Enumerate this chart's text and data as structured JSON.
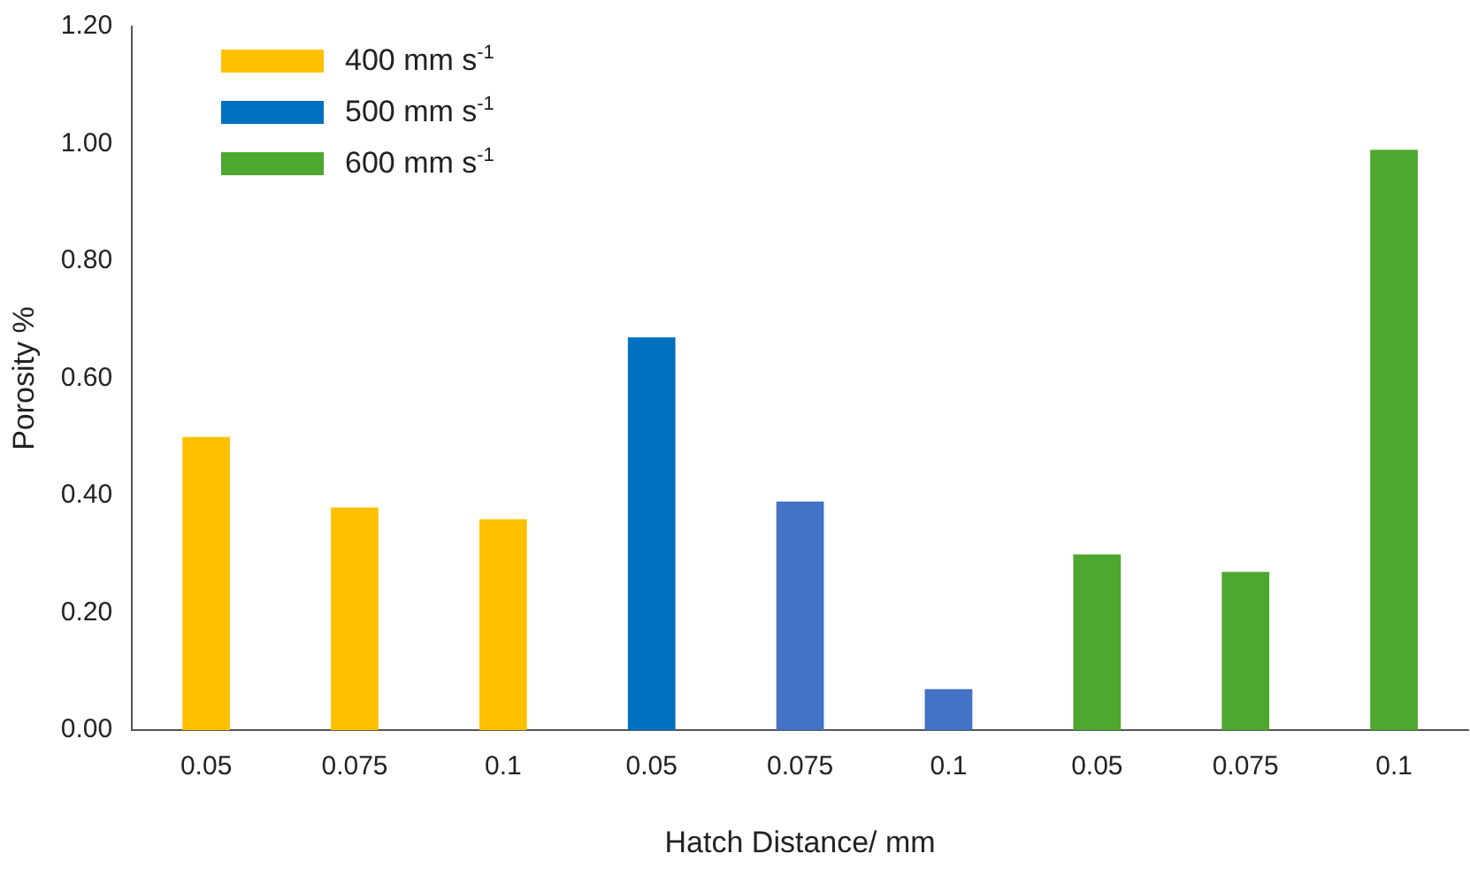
{
  "chart_data": {
    "type": "bar",
    "xlabel": "Hatch Distance/ mm",
    "ylabel": "Porosity %",
    "categories": [
      "0.05",
      "0.075",
      "0.1",
      "0.05",
      "0.075",
      "0.1",
      "0.05",
      "0.075",
      "0.1"
    ],
    "series": [
      {
        "name": "400 mm s$^{-1}$",
        "color": "#ffc000",
        "values": [
          0.5,
          0.38,
          0.36,
          null,
          null,
          null,
          null,
          null,
          null
        ]
      },
      {
        "name": "500 mm s$^{-1}$",
        "color": "#0070c0",
        "colors": [
          null,
          null,
          null,
          "#0070c0",
          "#4472c4",
          "#4472c4",
          null,
          null,
          null
        ],
        "values": [
          null,
          null,
          null,
          0.67,
          0.39,
          0.07,
          null,
          null,
          null
        ]
      },
      {
        "name": "600 mm s$^{-1}$",
        "color": "#4ea72e",
        "values": [
          null,
          null,
          null,
          null,
          null,
          null,
          0.3,
          0.27,
          0.99
        ]
      }
    ],
    "ylim": [
      0,
      1.2
    ],
    "yticks": [
      {
        "value": 0,
        "label": "0.00"
      },
      {
        "value": 0.2,
        "label": "0.20"
      },
      {
        "value": 0.4,
        "label": "0.40"
      },
      {
        "value": 0.6,
        "label": "0.60"
      },
      {
        "value": 0.8,
        "label": "0.80"
      },
      {
        "value": 1,
        "label": "1.00"
      },
      {
        "value": 1.2,
        "label": "1.20"
      }
    ],
    "grid": false,
    "legend": "top left"
  }
}
